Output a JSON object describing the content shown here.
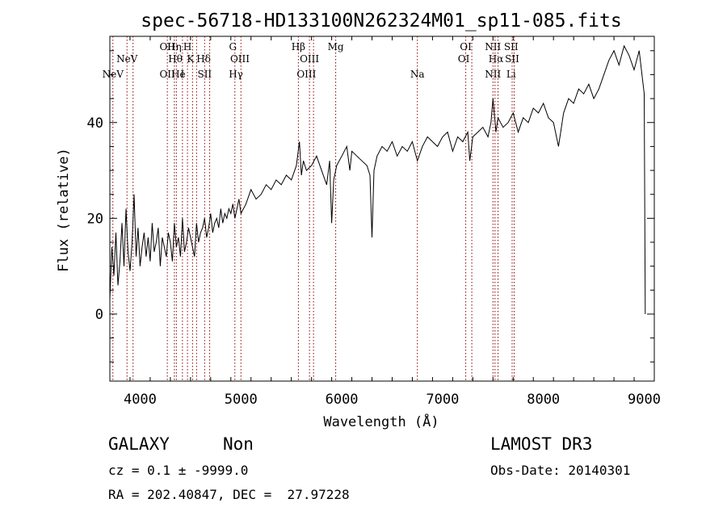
{
  "chart_data": {
    "type": "line",
    "title": "spec-56718-HD133100N262324M01_sp11-085.fits",
    "xlabel": "Wavelength (Å)",
    "ylabel": "Flux (relative)",
    "xlim": [
      3700,
      9100
    ],
    "ylim": [
      -14,
      58
    ],
    "xticks": [
      4000,
      5000,
      6000,
      7000,
      8000,
      9000
    ],
    "yticks": [
      0,
      20,
      40
    ],
    "grid": false,
    "series": [
      {
        "x": [
          3700,
          3720,
          3740,
          3760,
          3780,
          3800,
          3820,
          3840,
          3860,
          3880,
          3900,
          3920,
          3940,
          3960,
          3980,
          4000,
          4020,
          4040,
          4060,
          4080,
          4100,
          4120,
          4140,
          4160,
          4180,
          4200,
          4220,
          4240,
          4260,
          4280,
          4300,
          4320,
          4340,
          4360,
          4380,
          4400,
          4420,
          4440,
          4460,
          4480,
          4500,
          4520,
          4540,
          4560,
          4580,
          4600,
          4620,
          4640,
          4660,
          4680,
          4700,
          4720,
          4740,
          4760,
          4780,
          4800,
          4820,
          4840,
          4860,
          4880,
          4900,
          4920,
          4940,
          4960,
          4980,
          5000,
          5050,
          5100,
          5150,
          5200,
          5250,
          5300,
          5350,
          5400,
          5450,
          5500,
          5550,
          5580,
          5600,
          5620,
          5650,
          5700,
          5750,
          5800,
          5850,
          5880,
          5900,
          5920,
          5950,
          6000,
          6050,
          6080,
          6100,
          6150,
          6200,
          6250,
          6280,
          6300,
          6320,
          6350,
          6400,
          6450,
          6500,
          6550,
          6600,
          6650,
          6700,
          6750,
          6800,
          6850,
          6900,
          6950,
          7000,
          7050,
          7100,
          7150,
          7200,
          7250,
          7270,
          7300,
          7350,
          7400,
          7450,
          7480,
          7500,
          7530,
          7550,
          7600,
          7650,
          7700,
          7750,
          7800,
          7850,
          7900,
          7950,
          8000,
          8050,
          8100,
          8150,
          8200,
          8250,
          8300,
          8350,
          8400,
          8450,
          8500,
          8550,
          8600,
          8650,
          8700,
          8750,
          8800,
          8850,
          8900,
          8950,
          9000,
          9010
        ],
        "y": [
          3,
          14,
          8,
          17,
          6,
          11,
          19,
          10,
          22,
          13,
          9,
          15,
          25,
          12,
          18,
          10,
          14,
          17,
          12,
          16,
          11,
          19,
          13,
          15,
          18,
          10,
          16,
          14,
          12,
          17,
          15,
          11,
          19,
          14,
          16,
          12,
          20,
          13,
          15,
          18,
          16,
          14,
          12,
          19,
          15,
          17,
          18,
          20,
          16,
          18,
          21,
          17,
          19,
          20,
          18,
          22,
          19,
          21,
          20,
          22,
          21,
          23,
          20,
          22,
          24,
          21,
          23,
          26,
          24,
          25,
          27,
          26,
          28,
          27,
          29,
          28,
          31,
          36,
          29,
          32,
          30,
          31,
          33,
          30,
          27,
          32,
          19,
          28,
          31,
          33,
          35,
          30,
          34,
          33,
          32,
          31,
          29,
          16,
          30,
          33,
          35,
          34,
          36,
          33,
          35,
          34,
          36,
          32,
          35,
          37,
          36,
          35,
          37,
          38,
          34,
          37,
          36,
          38,
          32,
          37,
          38,
          39,
          37,
          40,
          45,
          38,
          41,
          39,
          40,
          42,
          38,
          41,
          40,
          43,
          42,
          44,
          41,
          40,
          35,
          42,
          45,
          44,
          47,
          46,
          48,
          45,
          47,
          50,
          53,
          55,
          52,
          56,
          54,
          51,
          55,
          46,
          0
        ]
      }
    ],
    "line_markers": [
      {
        "x": 3730,
        "label": "NeV",
        "row": 3
      },
      {
        "x": 3870,
        "label": "NeV",
        "row": 2
      },
      {
        "x": 4270,
        "label": "OII",
        "row": 1
      },
      {
        "x": 4270,
        "label": "OII",
        "row": 3
      },
      {
        "x": 4340,
        "label": "Hη",
        "row": 1
      },
      {
        "x": 4350,
        "label": "Hθ",
        "row": 2
      },
      {
        "x": 4380,
        "label": "He",
        "row": 3
      },
      {
        "x": 4420,
        "label": "I",
        "row": 3
      },
      {
        "x": 4470,
        "label": "H",
        "row": 1
      },
      {
        "x": 4500,
        "label": "K",
        "row": 2
      },
      {
        "x": 4630,
        "label": "Hδ",
        "row": 2
      },
      {
        "x": 4640,
        "label": "SII",
        "row": 3
      },
      {
        "x": 4920,
        "label": "G",
        "row": 1
      },
      {
        "x": 4990,
        "label": "OIII",
        "row": 2
      },
      {
        "x": 4950,
        "label": "Hγ",
        "row": 3
      },
      {
        "x": 5570,
        "label": "Hβ",
        "row": 1
      },
      {
        "x": 5680,
        "label": "OIII",
        "row": 2
      },
      {
        "x": 5650,
        "label": "OIII",
        "row": 3
      },
      {
        "x": 5940,
        "label": "Mg",
        "row": 1
      },
      {
        "x": 6750,
        "label": "Na",
        "row": 3
      },
      {
        "x": 7230,
        "label": "OI",
        "row": 1
      },
      {
        "x": 7210,
        "label": "OI",
        "row": 2
      },
      {
        "x": 7500,
        "label": "NII",
        "row": 1
      },
      {
        "x": 7530,
        "label": "Hα",
        "row": 2
      },
      {
        "x": 7500,
        "label": "NII",
        "row": 3
      },
      {
        "x": 7680,
        "label": "SII",
        "row": 1
      },
      {
        "x": 7690,
        "label": "SII",
        "row": 2
      },
      {
        "x": 7680,
        "label": "Li",
        "row": 3
      }
    ],
    "marker_lines_x": [
      3730,
      3870,
      3930,
      4270,
      4340,
      4360,
      4420,
      4470,
      4520,
      4560,
      4640,
      4690,
      4940,
      5000,
      5570,
      5680,
      5720,
      5940,
      6750,
      7230,
      7290,
      7500,
      7520,
      7550,
      7690,
      7710
    ]
  },
  "footer": {
    "class_label": "GALAXY",
    "subclass_label": "Non",
    "survey": "LAMOST DR3",
    "cz_line": "cz = 0.1 ± -9999.0",
    "obs_date": "Obs-Date: 20140301",
    "coords": "RA = 202.40847, DEC =  27.97228"
  },
  "colors": {
    "line": "#000000",
    "marker": "#8b0000",
    "background": "#ffffff"
  }
}
